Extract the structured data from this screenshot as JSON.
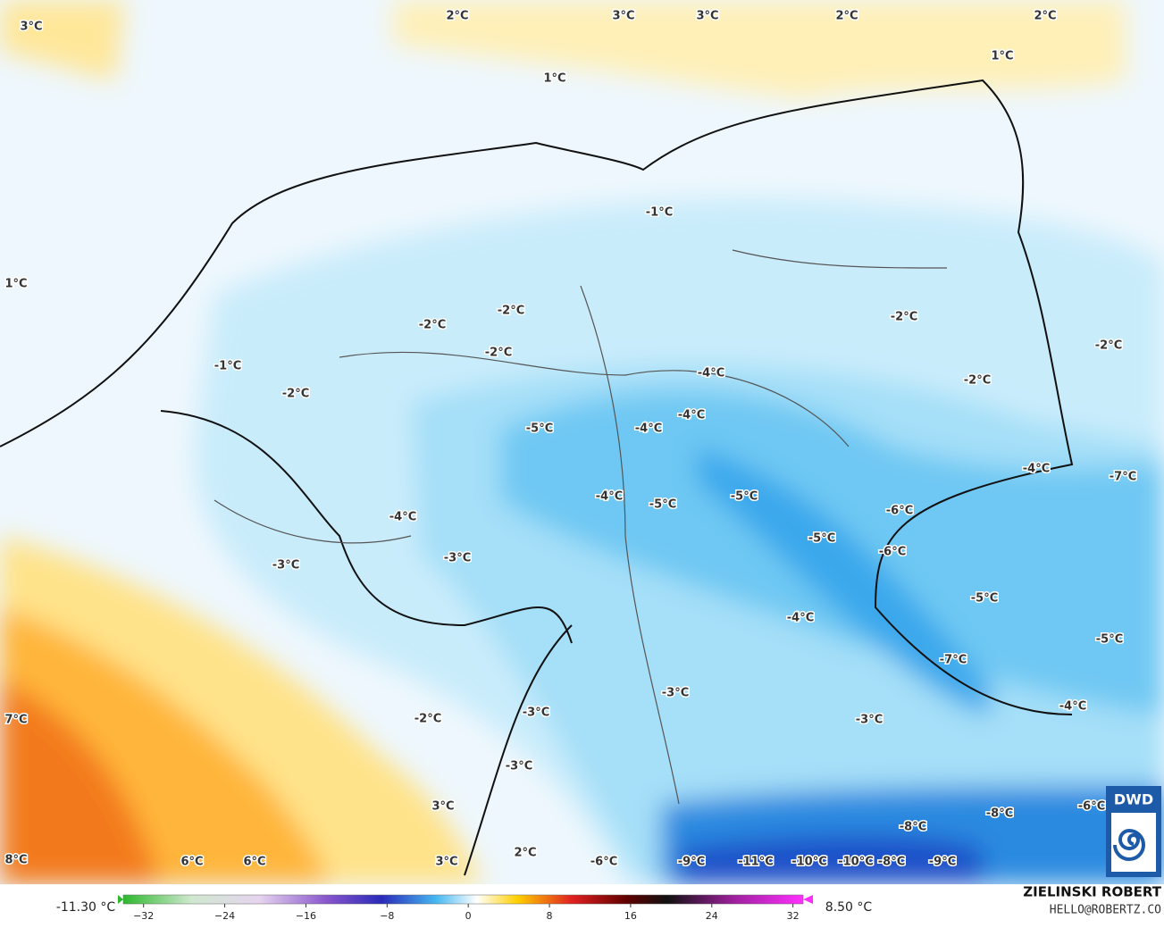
{
  "map": {
    "labels": [
      "3°C",
      "2°C",
      "3°C",
      "3°C",
      "2°C",
      "2°C",
      "1°C",
      "1°C",
      "1°C",
      "-1°C",
      "-2°C",
      "-2°C",
      "-2°C",
      "-2°C",
      "-2°C",
      "-1°C",
      "-2°C",
      "-2°C",
      "-4°C",
      "-4°C",
      "-4°C",
      "-5°C",
      "-4°C",
      "-7°C",
      "-4°C",
      "-5°C",
      "-5°C",
      "-4°C",
      "-6°C",
      "-5°C",
      "-6°C",
      "-3°C",
      "-3°C",
      "-5°C",
      "-4°C",
      "-5°C",
      "-7°C",
      "-3°C",
      "-3°C",
      "-4°C",
      "-2°C",
      "-3°C",
      "7°C",
      "-3°C",
      "3°C",
      "-8°C",
      "-8°C",
      "-6°C",
      "2°C",
      "8°C",
      "6°C",
      "6°C",
      "3°C",
      "-6°C",
      "-9°C",
      "-11°C",
      "-10°C",
      "-10°C",
      "-8°C",
      "-9°C"
    ],
    "logo": "DWD"
  },
  "colorbar": {
    "min_label": "-11.30 °C",
    "max_label": "8.50 °C",
    "lim": [
      -34,
      33
    ],
    "ticks": [
      {
        "value": -32,
        "label": "−32"
      },
      {
        "value": -24,
        "label": "−24"
      },
      {
        "value": -16,
        "label": "−16"
      },
      {
        "value": -8,
        "label": "−8"
      },
      0,
      8,
      16,
      24,
      32
    ]
  },
  "footer": {
    "author": "ZIELINSKI ROBERT",
    "email": "HELLO@ROBERTZ.CO"
  }
}
